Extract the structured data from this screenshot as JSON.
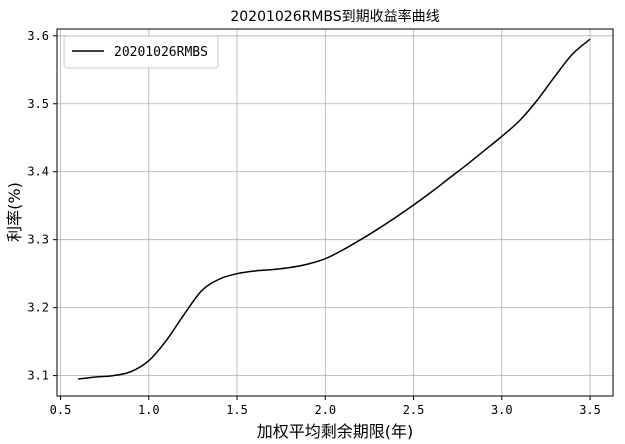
{
  "chart_data": {
    "type": "line",
    "title": "20201026RMBS到期收益率曲线",
    "xlabel": "加权平均剩余期限(年)",
    "ylabel": "利率(%)",
    "xlim": [
      0.48,
      3.63
    ],
    "ylim": [
      3.07,
      3.61
    ],
    "xticks": [
      "0.5",
      "1.0",
      "1.5",
      "2.0",
      "2.5",
      "3.0",
      "3.5"
    ],
    "yticks": [
      "3.1",
      "3.2",
      "3.3",
      "3.4",
      "3.5",
      "3.6"
    ],
    "grid": true,
    "legend": "top-left",
    "series": [
      {
        "name": "20201026RMBS",
        "color": "#000000",
        "x": [
          0.6,
          0.7,
          0.8,
          0.9,
          1.0,
          1.1,
          1.2,
          1.3,
          1.4,
          1.5,
          1.6,
          1.7,
          1.8,
          1.9,
          2.0,
          2.1,
          2.2,
          2.3,
          2.4,
          2.5,
          2.6,
          2.7,
          2.8,
          2.9,
          3.0,
          3.1,
          3.2,
          3.3,
          3.4,
          3.5
        ],
        "y": [
          3.095,
          3.098,
          3.1,
          3.106,
          3.122,
          3.152,
          3.19,
          3.225,
          3.242,
          3.25,
          3.254,
          3.256,
          3.259,
          3.264,
          3.272,
          3.285,
          3.3,
          3.316,
          3.333,
          3.351,
          3.37,
          3.39,
          3.41,
          3.431,
          3.452,
          3.475,
          3.505,
          3.54,
          3.573,
          3.595
        ]
      }
    ]
  }
}
